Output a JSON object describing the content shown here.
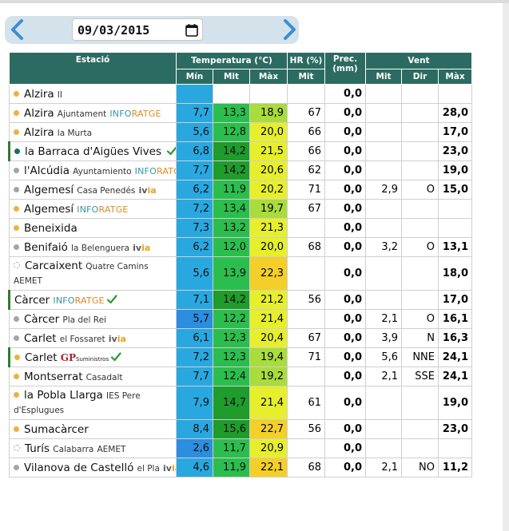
{
  "date": {
    "value": "09/03/2015"
  },
  "header": {
    "station": "Estació",
    "temperature": "Temperatura (°C)",
    "humidity": "HR (%)",
    "precip": "Prec. (mm)",
    "wind": "Vent",
    "t_min": "Mín",
    "t_mid": "Mit",
    "t_max": "Màx",
    "hr_mid": "Mit",
    "w_mid": "Mit",
    "w_dir": "Dir",
    "w_max": "Màx"
  },
  "rows": [
    {
      "name": "Alzira",
      "sub": "II",
      "net": "",
      "dot": "orange",
      "min": "",
      "mid": "",
      "max": "",
      "hr": "",
      "prec": "0,0",
      "wmit": "",
      "wdir": "",
      "wmax": ""
    },
    {
      "name": "Alzira",
      "sub": "Ajuntament",
      "net": "INFORATGE",
      "dot": "orange",
      "min": "7,7",
      "mid": "13,3",
      "max": "18,9",
      "hr": "67",
      "prec": "0,0",
      "wmit": "",
      "wdir": "",
      "wmax": "28,0"
    },
    {
      "name": "Alzira",
      "sub": "la Murta",
      "net": "",
      "dot": "orange",
      "min": "5,6",
      "mid": "12,8",
      "max": "20,0",
      "hr": "66",
      "prec": "0,0",
      "wmit": "",
      "wdir": "",
      "wmax": "17,0"
    },
    {
      "name": "la Barraca d'Aigües Vives",
      "sub": "",
      "net": "",
      "dot": "teal",
      "min": "6,8",
      "mid": "14,2",
      "max": "21,5",
      "hr": "66",
      "prec": "0,0",
      "wmit": "",
      "wdir": "",
      "wmax": "23,0"
    },
    {
      "name": "l'Alcúdia",
      "sub": "Ayuntamiento",
      "net": "INFORATGE",
      "dot": "gray",
      "min": "7,7",
      "mid": "14,2",
      "max": "20,6",
      "hr": "62",
      "prec": "0,0",
      "wmit": "",
      "wdir": "",
      "wmax": "19,0"
    },
    {
      "name": "Algemesí",
      "sub": "Casa Penedés",
      "net": "ivia",
      "dot": "gray",
      "min": "6,2",
      "mid": "11,9",
      "max": "20,2",
      "hr": "71",
      "prec": "0,0",
      "wmit": "2,9",
      "wdir": "O",
      "wmax": "15,0"
    },
    {
      "name": "Algemesí",
      "sub": "",
      "net": "INFORATGE",
      "dot": "orange",
      "min": "7,2",
      "mid": "13,4",
      "max": "19,7",
      "hr": "67",
      "prec": "0,0",
      "wmit": "",
      "wdir": "",
      "wmax": ""
    },
    {
      "name": "Beneixida",
      "sub": "",
      "net": "",
      "dot": "orange",
      "min": "7,3",
      "mid": "13,2",
      "max": "21,3",
      "hr": "",
      "prec": "0,0",
      "wmit": "",
      "wdir": "",
      "wmax": ""
    },
    {
      "name": "Benifaió",
      "sub": "la Belenguera",
      "net": "ivia",
      "dot": "gray",
      "min": "6,2",
      "mid": "12,0",
      "max": "20,0",
      "hr": "68",
      "prec": "0,0",
      "wmit": "3,2",
      "wdir": "O",
      "wmax": "13,1"
    },
    {
      "name": "Carcaixent",
      "sub": "Quatre Camins",
      "net": "AEMET",
      "dot": "empty",
      "min": "5,6",
      "mid": "13,9",
      "max": "22,3",
      "hr": "",
      "prec": "0,0",
      "wmit": "",
      "wdir": "",
      "wmax": "18,0"
    },
    {
      "name": "Càrcer",
      "sub": "",
      "net": "INFORATGE",
      "dot": "",
      "min": "7,1",
      "mid": "14,2",
      "max": "21,2",
      "hr": "56",
      "prec": "0,0",
      "wmit": "",
      "wdir": "",
      "wmax": "17,0"
    },
    {
      "name": "Càrcer",
      "sub": "Pla del Rei",
      "net": "",
      "dot": "gray",
      "min": "5,7",
      "mid": "12,2",
      "max": "21,4",
      "hr": "",
      "prec": "0,0",
      "wmit": "2,1",
      "wdir": "O",
      "wmax": "16,1"
    },
    {
      "name": "Carlet",
      "sub": "el Fossaret",
      "net": "ivia",
      "dot": "gray",
      "min": "6,1",
      "mid": "12,3",
      "max": "20,4",
      "hr": "67",
      "prec": "0,0",
      "wmit": "3,9",
      "wdir": "N",
      "wmax": "16,3"
    },
    {
      "name": "Carlet",
      "sub": "",
      "net": "GP",
      "dot": "orange",
      "min": "7,2",
      "mid": "12,3",
      "max": "19,4",
      "hr": "71",
      "prec": "0,0",
      "wmit": "5,6",
      "wdir": "NNE",
      "wmax": "24,1"
    },
    {
      "name": "Montserrat",
      "sub": "Casadalt",
      "net": "",
      "dot": "orange",
      "min": "7,7",
      "mid": "12,4",
      "max": "19,2",
      "hr": "",
      "prec": "0,0",
      "wmit": "2,1",
      "wdir": "SSE",
      "wmax": "24,1"
    },
    {
      "name": "la Pobla Llarga",
      "sub": "IES Pere d'Esplugues",
      "net": "",
      "dot": "orange",
      "min": "7,9",
      "mid": "14,7",
      "max": "21,4",
      "hr": "61",
      "prec": "0,0",
      "wmit": "",
      "wdir": "",
      "wmax": "19,0"
    },
    {
      "name": "Sumacàrcer",
      "sub": "",
      "net": "",
      "dot": "orange",
      "min": "8,4",
      "mid": "15,6",
      "max": "22,7",
      "hr": "56",
      "prec": "0,0",
      "wmit": "",
      "wdir": "",
      "wmax": "23,0"
    },
    {
      "name": "Turís",
      "sub": "Calabarra",
      "net": "AEMET",
      "dot": "empty",
      "min": "2,6",
      "mid": "11,7",
      "max": "20,9",
      "hr": "",
      "prec": "0,0",
      "wmit": "",
      "wdir": "",
      "wmax": ""
    },
    {
      "name": "Vilanova de Castelló",
      "sub": "el Pla",
      "net": "ivia",
      "dot": "gray",
      "min": "4,6",
      "mid": "11,9",
      "max": "22,1",
      "hr": "68",
      "prec": "0,0",
      "wmit": "2,1",
      "wdir": "NO",
      "wmax": "11,2"
    }
  ],
  "networks": {
    "gp_suffix": "Suministros"
  },
  "colors": {
    "header": "#2c6b62",
    "accent": "#3b8fd0"
  }
}
